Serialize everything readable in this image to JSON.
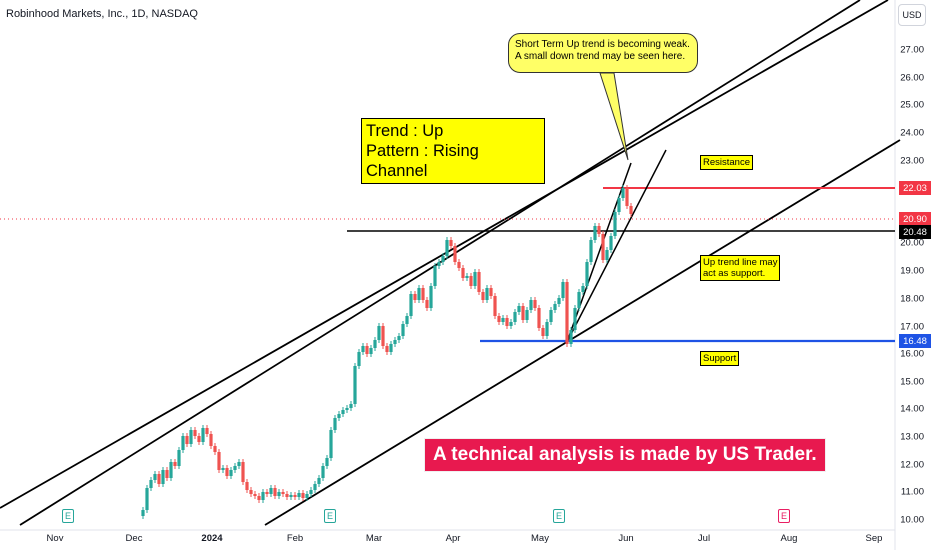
{
  "header": {
    "symbol_title": "Robinhood Markets, Inc., 1D, NASDAQ",
    "currency_button": "USD"
  },
  "y_axis": {
    "ticks": [
      "27.00",
      "26.00",
      "25.00",
      "24.00",
      "23.00",
      "20.00",
      "19.00",
      "18.00",
      "17.00",
      "16.00",
      "15.00",
      "14.00",
      "13.00",
      "12.00",
      "11.00",
      "10.00"
    ]
  },
  "x_axis": {
    "labels": [
      {
        "text": "Nov",
        "bold": false
      },
      {
        "text": "Dec",
        "bold": false
      },
      {
        "text": "2024",
        "bold": true
      },
      {
        "text": "Feb",
        "bold": false
      },
      {
        "text": "Mar",
        "bold": false
      },
      {
        "text": "Apr",
        "bold": false
      },
      {
        "text": "May",
        "bold": false
      },
      {
        "text": "Jun",
        "bold": false
      },
      {
        "text": "Jul",
        "bold": false
      },
      {
        "text": "Aug",
        "bold": false
      },
      {
        "text": "Sep",
        "bold": false
      }
    ]
  },
  "price_tags": {
    "resistance": {
      "value": "22.03",
      "color": "#f23645"
    },
    "current": {
      "value": "20.90",
      "color": "#f23645"
    },
    "horizontal": {
      "value": "20.48",
      "color": "#000000"
    },
    "support": {
      "value": "16.48",
      "color": "#1e53e5"
    }
  },
  "annotations": {
    "trend_line1": "Trend : Up",
    "trend_line2": "Pattern : Rising Channel",
    "callout_line1": "Short Term Up trend is becoming weak.",
    "callout_line2": "A small down trend may be seen here.",
    "resistance_label": "Resistance",
    "uptrend_line1": "Up trend line may",
    "uptrend_line2": "act as support.",
    "support_label": "Support",
    "banner": "A  technical analysis is made by US Trader."
  },
  "events": [
    "E",
    "E",
    "E",
    "E"
  ],
  "colors": {
    "up": "#26a69a",
    "down": "#ef5350",
    "accent_yellow": "#ffff00",
    "banner": "#e8194f"
  }
}
